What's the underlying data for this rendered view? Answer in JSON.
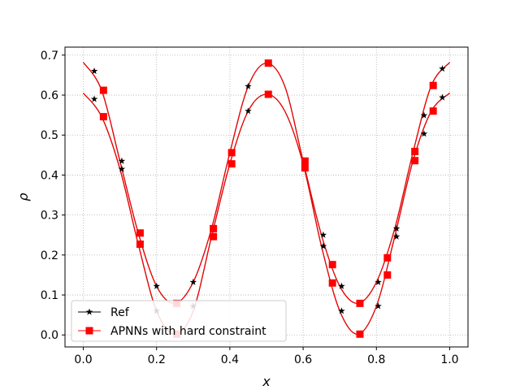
{
  "chart_data": {
    "type": "line",
    "xlabel": "x",
    "ylabel": "ρ",
    "xlim": [
      -0.05,
      1.05
    ],
    "ylim": [
      -0.03,
      0.72
    ],
    "xticks": [
      "0.0",
      "0.2",
      "0.4",
      "0.6",
      "0.8",
      "1.0"
    ],
    "yticks": [
      "0.0",
      "0.1",
      "0.2",
      "0.3",
      "0.4",
      "0.5",
      "0.6",
      "0.7"
    ],
    "grid": true,
    "legend_position": "lower-left",
    "series": [
      {
        "name": "Ref",
        "color": "#000000",
        "marker": "star",
        "curves": [
          {
            "x": [
              0.0,
              0.05,
              0.1,
              0.15,
              0.2,
              0.25,
              0.3,
              0.35,
              0.4,
              0.45,
              0.5,
              0.55,
              0.6,
              0.65,
              0.7,
              0.75,
              0.8,
              0.85,
              0.9,
              0.95,
              1.0
            ],
            "y": [
              0.605,
              0.546,
              0.415,
              0.227,
              0.06,
              0.002,
              0.06,
              0.246,
              0.428,
              0.56,
              0.602,
              0.56,
              0.428,
              0.222,
              0.06,
              0.002,
              0.072,
              0.246,
              0.436,
              0.56,
              0.605
            ]
          },
          {
            "x": [
              0.0,
              0.05,
              0.1,
              0.15,
              0.2,
              0.25,
              0.3,
              0.35,
              0.4,
              0.45,
              0.5,
              0.55,
              0.6,
              0.65,
              0.7,
              0.75,
              0.8,
              0.85,
              0.9,
              0.95,
              1.0
            ],
            "y": [
              0.682,
              0.612,
              0.435,
              0.255,
              0.122,
              0.079,
              0.132,
              0.266,
              0.456,
              0.622,
              0.68,
              0.622,
              0.435,
              0.25,
              0.122,
              0.079,
              0.132,
              0.266,
              0.457,
              0.624,
              0.682
            ]
          }
        ],
        "marker_x": [
          0.03,
          0.105,
          0.2,
          0.3,
          0.45,
          0.655,
          0.705,
          0.805,
          0.855,
          0.93,
          0.98
        ],
        "marker_y": [
          [
            0.59,
            0.415,
            0.06,
            0.072,
            0.56,
            0.222,
            0.06,
            0.072,
            0.246,
            0.503,
            0.594
          ],
          [
            0.66,
            0.435,
            0.122,
            0.132,
            0.622,
            0.25,
            0.122,
            0.132,
            0.266,
            0.549,
            0.666
          ]
        ]
      },
      {
        "name": "APNNs with hard constraint",
        "color": "#ff0000",
        "marker": "square",
        "marker_x": [
          0.055,
          0.155,
          0.255,
          0.355,
          0.405,
          0.505,
          0.605,
          0.68,
          0.755,
          0.83,
          0.905,
          0.955
        ],
        "marker_y": [
          [
            0.546,
            0.227,
            0.002,
            0.246,
            0.428,
            0.602,
            0.418,
            0.13,
            0.002,
            0.15,
            0.436,
            0.56
          ],
          [
            0.612,
            0.255,
            0.079,
            0.266,
            0.456,
            0.68,
            0.435,
            0.176,
            0.079,
            0.193,
            0.459,
            0.624
          ]
        ]
      }
    ]
  }
}
